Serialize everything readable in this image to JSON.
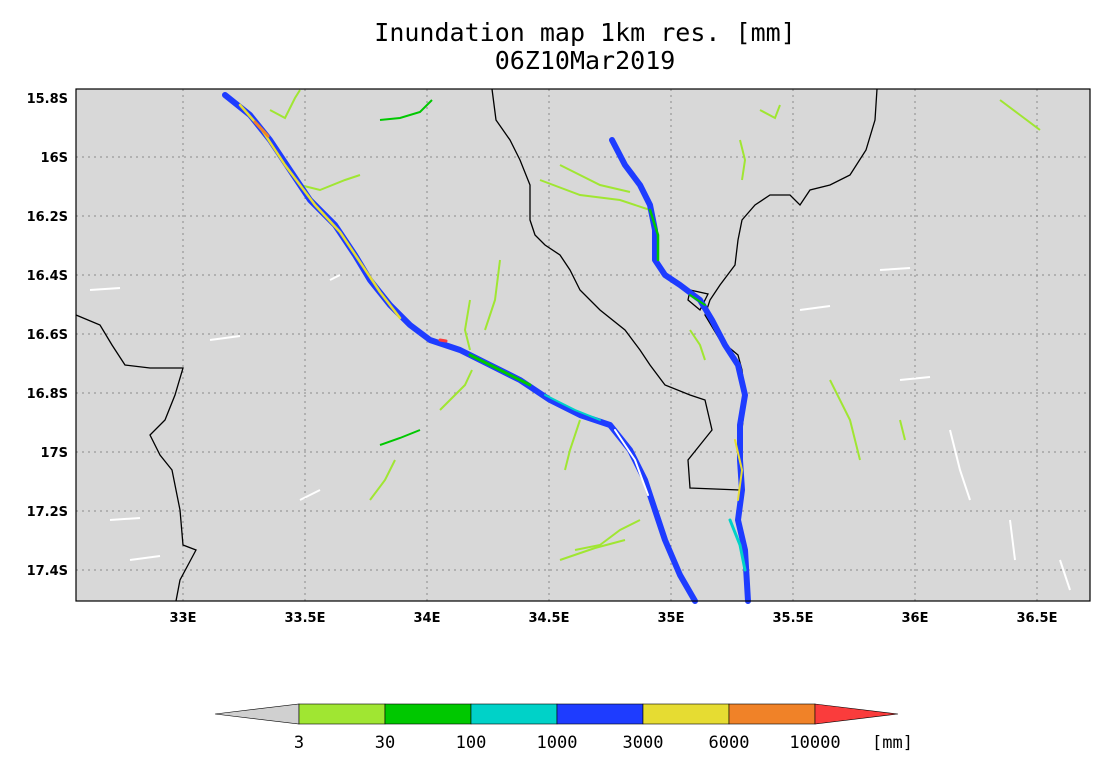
{
  "title": {
    "line1": "Inundation map 1km res. [mm]",
    "line2": "06Z10Mar2019"
  },
  "map": {
    "background_color": "#d8d8d8",
    "lat_labels": [
      "15.8S",
      "16S",
      "16.2S",
      "16.4S",
      "16.6S",
      "16.8S",
      "17S",
      "17.2S",
      "17.4S"
    ],
    "lon_labels": [
      "33E",
      "33.5E",
      "34E",
      "34.5E",
      "35E",
      "35.5E",
      "36E",
      "36.5E"
    ]
  },
  "colorbar": {
    "unit": "[mm]",
    "thresholds": [
      "3",
      "30",
      "100",
      "1000",
      "3000",
      "6000",
      "10000"
    ],
    "colors": [
      "#d0d0d0",
      "#a0e632",
      "#00c800",
      "#00d2c8",
      "#1e3cff",
      "#e6dc32",
      "#f08228",
      "#fa3c3c"
    ]
  }
}
